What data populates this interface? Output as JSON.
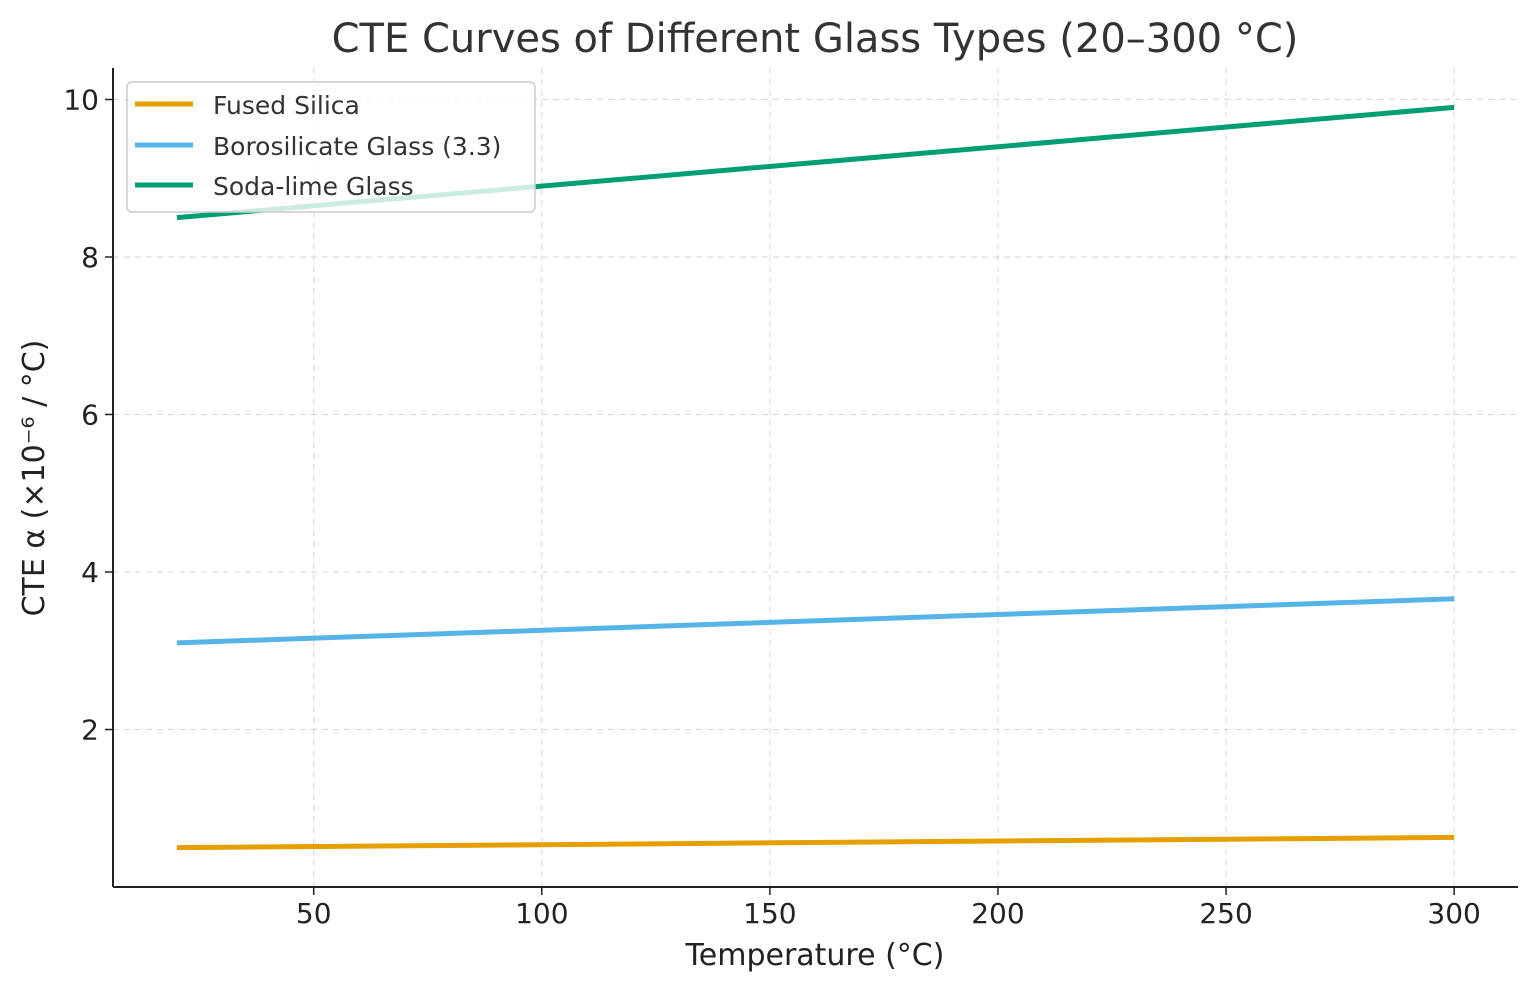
{
  "chart_data": {
    "type": "line",
    "title": "CTE Curves of Different Glass Types (20–300 °C)",
    "xlabel": "Temperature (°C)",
    "ylabel": "CTE α (×10⁻⁶ / °C)",
    "xlim": [
      6,
      314
    ],
    "ylim": [
      0,
      10.4
    ],
    "xticks": [
      50,
      100,
      150,
      200,
      250,
      300
    ],
    "yticks": [
      2,
      4,
      6,
      8,
      10
    ],
    "xtick_labels": [
      "50",
      "100",
      "150",
      "200",
      "250",
      "300"
    ],
    "ytick_labels": [
      "2",
      "4",
      "6",
      "8",
      "10"
    ],
    "grid": true,
    "legend_position": "top-left",
    "series": [
      {
        "name": "Fused Silica",
        "color": "#E69F00",
        "x": [
          20,
          300
        ],
        "y": [
          0.5,
          0.63
        ]
      },
      {
        "name": "Borosilicate Glass (3.3)",
        "color": "#56B4E9",
        "x": [
          20,
          300
        ],
        "y": [
          3.1,
          3.66
        ]
      },
      {
        "name": "Soda-lime Glass",
        "color": "#009E73",
        "x": [
          20,
          300
        ],
        "y": [
          8.5,
          9.9
        ]
      }
    ]
  }
}
